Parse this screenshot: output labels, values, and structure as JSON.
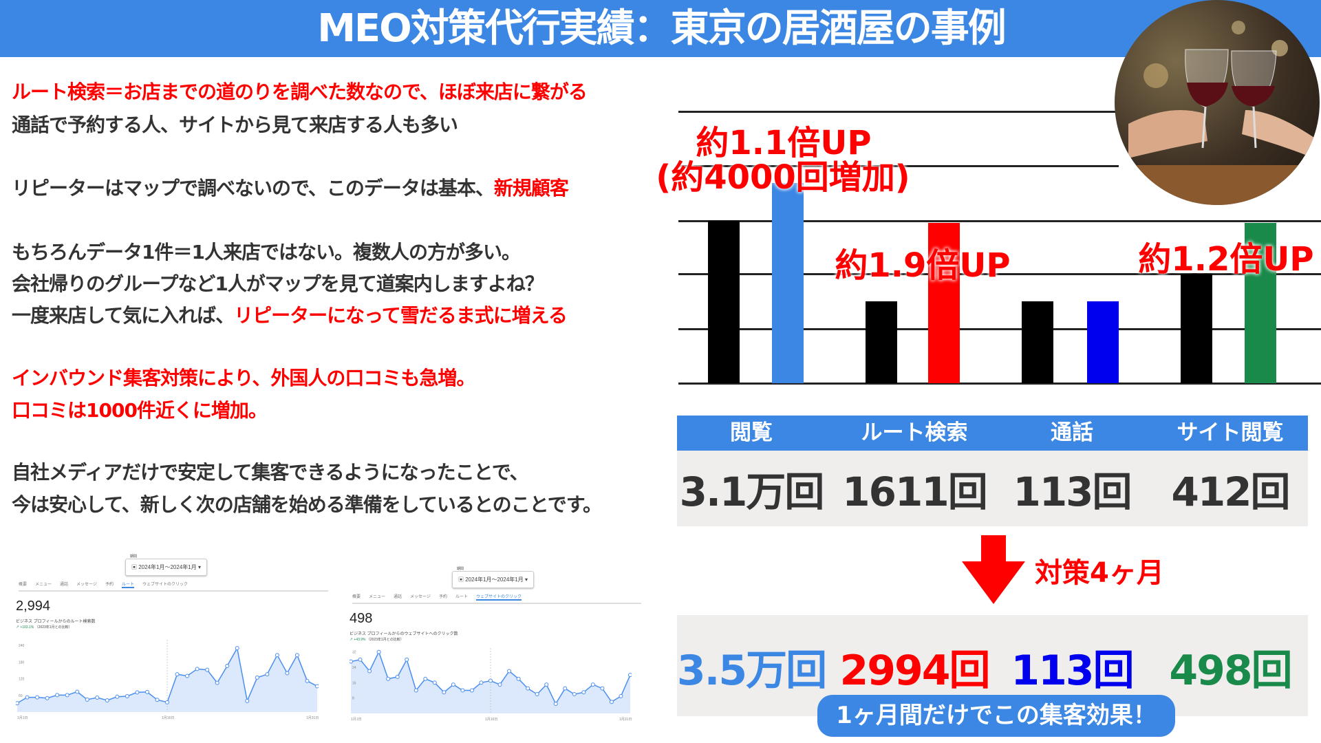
{
  "header": {
    "title": "MEO対策代行実績：東京の居酒屋の事例"
  },
  "body_text": [
    {
      "parts": [
        {
          "t": "ルート検索＝お店までの道のりを調べた数なので、ほぼ来店に繋がる",
          "red": true
        }
      ]
    },
    {
      "parts": [
        {
          "t": "通話で予約する人、サイトから見て来店する人も多い",
          "red": false
        }
      ]
    },
    {
      "parts": [
        {
          "t": "リピーターはマップで調べないので、このデータは基本、",
          "red": false
        },
        {
          "t": "新規顧客",
          "red": true
        }
      ]
    },
    {
      "parts": [
        {
          "t": "もちろんデータ1件＝1人来店ではない。複数人の方が多い。",
          "red": false
        }
      ]
    },
    {
      "parts": [
        {
          "t": "会社帰りのグループなど1人がマップを見て道案内しますよね？",
          "red": false
        }
      ]
    },
    {
      "parts": [
        {
          "t": "一度来店して気に入れば、",
          "red": false
        },
        {
          "t": "リピーターになって雪だるま式に増える",
          "red": true
        }
      ]
    },
    {
      "parts": [
        {
          "t": "インバウンド集客対策により、外国人の口コミも急増。",
          "red": true
        }
      ]
    },
    {
      "parts": [
        {
          "t": "口コミは1000件近くに増加。",
          "red": true
        }
      ]
    },
    {
      "parts": [
        {
          "t": "自社メディアだけで安定して集客できるようになったことで、",
          "red": false
        }
      ]
    },
    {
      "parts": [
        {
          "t": "今は安心して、新しく次の店舗を始める準備をしているとのことです。",
          "red": false
        }
      ]
    }
  ],
  "colors": {
    "accent": "#3b87e3",
    "red": "#ff0000",
    "blue": "#0000ee",
    "green": "#1a8a4a",
    "before": "#000000",
    "after_view": "#3b87e3"
  },
  "chart_data": {
    "type": "bar",
    "categories": [
      "閲覧",
      "ルート検索",
      "通話",
      "サイト閲覧"
    ],
    "series": [
      {
        "values": [
          3.1,
          1611,
          113,
          412
        ]
      },
      {
        "values": [
          3.5,
          2994,
          113,
          498
        ]
      }
    ],
    "annotations": [
      "約1.1倍UP",
      "(約4000回増加)",
      "約1.9倍UP",
      "約1.2倍UP"
    ],
    "grid": true
  },
  "table": {
    "headers": [
      "閲覧",
      "ルート検索",
      "通話",
      "サイト閲覧"
    ],
    "before": [
      "3.1万回",
      "1611回",
      "113回",
      "412回"
    ],
    "after": [
      "3.5万回",
      "2994回",
      "113回",
      "498回"
    ]
  },
  "arrow": {
    "icon": "arrow-down-icon",
    "label": "対策4ヶ月"
  },
  "cta": "1ヶ月間だけでこの集客効果！",
  "photo": {
    "desc_icon": "wine-toast-photo"
  },
  "screenshots": [
    {
      "date_label": "期間",
      "date": "2024年1月～2024年1月",
      "tabs": [
        "概要",
        "メニュー",
        "通話",
        "メッセージ",
        "予約",
        "ルート",
        "ウェブサイトのクリック"
      ],
      "active_tab": 5,
      "value": "2,994",
      "subtitle": "ビジネス プロフィールからのルート検索数",
      "change": "+103.1%",
      "compare": "（2023年1月との比較）",
      "yticks": [
        "240",
        "180",
        "120",
        "60"
      ],
      "ymax": 260,
      "xticks": [
        "1月1日",
        "1月16日",
        "1月31日"
      ],
      "points": [
        32,
        53,
        53,
        50,
        61,
        61,
        73,
        45,
        52,
        42,
        55,
        57,
        71,
        72,
        44,
        35,
        136,
        130,
        155,
        152,
        105,
        166,
        230,
        40,
        124,
        136,
        205,
        140,
        205,
        112,
        93
      ]
    },
    {
      "date_label": "期間",
      "date": "2024年1月～2024年1月",
      "tabs": [
        "概要",
        "メニュー",
        "通話",
        "メッセージ",
        "予約",
        "ルート",
        "ウェブサイトのクリック"
      ],
      "active_tab": 6,
      "value": "498",
      "subtitle": "ビジネス プロフィールからのウェブサイトへのクリック数",
      "change": "+43.9%",
      "compare": "（2023年1月との比較）",
      "yticks": [
        "32",
        "24",
        "16",
        "8"
      ],
      "ymax": 34,
      "xticks": [
        "1月1日",
        "1月16日",
        "1月31日"
      ],
      "points": [
        27,
        28,
        22,
        32,
        18,
        19,
        28,
        12,
        18,
        16,
        11,
        15,
        12,
        12,
        16,
        17,
        15,
        22,
        18,
        13,
        10,
        15,
        5,
        13,
        10,
        11,
        15,
        13,
        6,
        9,
        20
      ]
    }
  ]
}
